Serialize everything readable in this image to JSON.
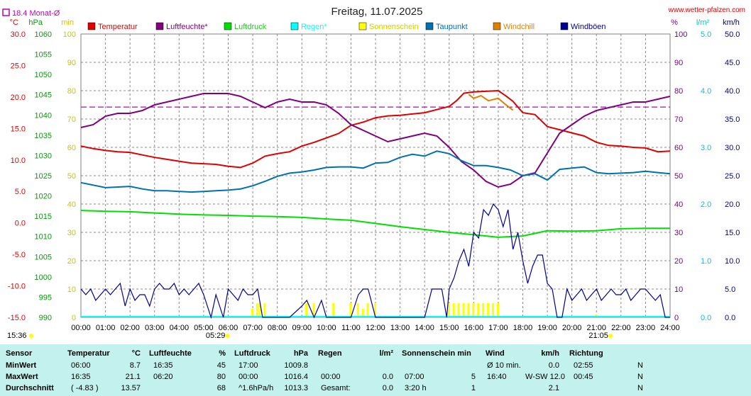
{
  "title": "Freitag, 11.07.2025",
  "site": "www.wetter-pfalzen.com",
  "monat": "18.4 Monat-Ø",
  "colors": {
    "temperatur": "#e00000",
    "luftfeuchte": "#800080",
    "luftdruck": "#00e000",
    "regen": "#00ffff",
    "sonnenschein": "#ffff00",
    "taupunkt": "#0070b0",
    "windchill": "#e08000",
    "windboeen": "#000090",
    "monat": "#c000c0",
    "stats_bg": "#c3f2ee"
  },
  "legend": [
    {
      "label": "Temperatur",
      "color": "#e00000"
    },
    {
      "label": "Luftfeuchte*",
      "color": "#800080"
    },
    {
      "label": "Luftdruck",
      "color": "#00e000"
    },
    {
      "label": "Regen*",
      "color": "#00ffff"
    },
    {
      "label": "Sonnenschein",
      "color": "#ffff00"
    },
    {
      "label": "Taupunkt",
      "color": "#0070b0"
    },
    {
      "label": "Windchill",
      "color": "#e08000"
    },
    {
      "label": "Windböen",
      "color": "#000090"
    }
  ],
  "axes": {
    "temp": {
      "unit": "°C",
      "ticks": [
        "30.0",
        "25.0",
        "20.0",
        "15.0",
        "10.0",
        "5.0",
        "0.0",
        "-5.0",
        "-10.0",
        "-15.0"
      ]
    },
    "hpa": {
      "unit": "hPa",
      "ticks": [
        "1060",
        "1055",
        "1050",
        "1045",
        "1040",
        "1035",
        "1030",
        "1025",
        "1020",
        "1015",
        "1010",
        "1005",
        "1000",
        "995",
        "990"
      ]
    },
    "min": {
      "unit": "min",
      "ticks": [
        "100",
        "90",
        "80",
        "70",
        "60",
        "50",
        "40",
        "30",
        "20",
        "10",
        "0"
      ]
    },
    "pct": {
      "unit": "%",
      "ticks": [
        "100",
        "90",
        "80",
        "70",
        "60",
        "50",
        "40",
        "30",
        "20",
        "10",
        "0"
      ]
    },
    "lm2": {
      "unit": "l/m²",
      "ticks": [
        "5.0",
        "4.0",
        "3.0",
        "2.0",
        "1.0",
        "0.0"
      ]
    },
    "kmh": {
      "unit": "km/h",
      "ticks": [
        "50.0",
        "45.0",
        "40.0",
        "35.0",
        "30.0",
        "25.0",
        "20.0",
        "15.0",
        "10.0",
        "5.0",
        "0.0"
      ]
    },
    "x": [
      "00:00",
      "01:00",
      "02:00",
      "03:00",
      "04:00",
      "05:00",
      "06:00",
      "07:00",
      "08:00",
      "09:00",
      "10:00",
      "11:00",
      "12:00",
      "13:00",
      "14:00",
      "15:00",
      "16:00",
      "17:00",
      "18:00",
      "19:00",
      "20:00",
      "21:00",
      "22:00",
      "23:00",
      "24:00"
    ]
  },
  "markers": {
    "now": "15:36",
    "sunrise": "05:29",
    "sunset": "21:05"
  },
  "chart_data": {
    "type": "line",
    "title": "Freitag, 11.07.2025",
    "x_unit": "hours",
    "monat_avg": 18.4,
    "series": [
      {
        "name": "Temperatur",
        "axis": "temp",
        "color": "#e00000",
        "x": [
          0,
          0.5,
          1,
          1.5,
          2,
          2.5,
          3,
          3.5,
          4,
          4.5,
          5,
          5.5,
          6,
          6.5,
          7,
          7.5,
          8,
          8.5,
          9,
          9.5,
          10,
          10.5,
          11,
          11.5,
          12,
          12.5,
          13,
          13.5,
          14,
          14.5,
          15,
          15.3,
          15.6,
          16,
          16.5,
          17,
          17.3,
          17.6,
          18,
          18.5,
          19,
          19.5,
          20,
          20.5,
          21,
          21.5,
          22,
          22.5,
          23,
          23.5,
          24
        ],
        "y": [
          12.2,
          11.8,
          11.5,
          11.3,
          11.2,
          10.8,
          10.4,
          10.1,
          9.8,
          9.5,
          9.4,
          9.3,
          9.0,
          8.8,
          9.5,
          10.6,
          11.0,
          11.3,
          12.2,
          12.8,
          13.5,
          14.2,
          15.5,
          16.0,
          16.7,
          17.0,
          17.1,
          17.3,
          17.5,
          18.0,
          18.5,
          19.4,
          20.6,
          20.8,
          20.9,
          21.0,
          20.2,
          19.3,
          17.5,
          17.2,
          15.3,
          14.8,
          14.3,
          13.8,
          12.8,
          12.3,
          12.2,
          12.0,
          11.9,
          11.3,
          11.4
        ]
      },
      {
        "name": "Windchill",
        "axis": "temp",
        "color": "#e08000",
        "x": [
          15.8,
          16.0,
          16.3,
          16.6,
          17.0,
          17.3,
          17.6
        ],
        "y": [
          20.4,
          19.8,
          20.2,
          19.4,
          19.8,
          18.8,
          17.9
        ]
      },
      {
        "name": "Luftfeuchte",
        "axis": "pct",
        "color": "#800080",
        "x": [
          0,
          0.5,
          1,
          1.5,
          2,
          2.5,
          3,
          3.5,
          4,
          4.5,
          5,
          5.5,
          6,
          6.5,
          7,
          7.5,
          8,
          8.5,
          9,
          9.5,
          10,
          10.5,
          11,
          11.5,
          12,
          12.5,
          13,
          13.5,
          14,
          14.5,
          15,
          15.5,
          16,
          16.5,
          17,
          17.5,
          18,
          18.5,
          19,
          19.5,
          20,
          20.5,
          21,
          21.5,
          22,
          22.5,
          23,
          23.5,
          24
        ],
        "y": [
          67,
          68,
          71,
          72,
          72,
          73,
          75,
          76,
          77,
          78,
          79,
          79,
          79,
          78,
          76,
          74,
          76,
          77,
          76,
          76,
          75,
          72,
          68,
          66,
          64,
          62,
          63,
          64,
          65,
          64,
          60,
          55,
          52,
          48,
          46,
          47,
          50,
          51,
          58,
          65,
          68,
          71,
          73,
          74,
          75,
          76,
          76,
          77,
          78
        ]
      },
      {
        "name": "Taupunkt",
        "axis": "temp",
        "color": "#0070b0",
        "x": [
          0,
          0.5,
          1,
          1.5,
          2,
          2.5,
          3,
          3.5,
          4,
          4.5,
          5,
          5.5,
          6,
          6.5,
          7,
          7.5,
          8,
          8.5,
          9,
          9.5,
          10,
          10.5,
          11,
          11.5,
          12,
          12.5,
          13,
          13.5,
          14,
          14.5,
          15,
          15.5,
          16,
          16.5,
          17,
          17.5,
          18,
          18.5,
          19,
          19.5,
          20,
          20.5,
          21,
          21.5,
          22,
          22.5,
          23,
          23.5,
          24
        ],
        "y": [
          6.4,
          6.0,
          5.6,
          5.7,
          5.8,
          5.4,
          5.1,
          5.1,
          5.0,
          4.9,
          5.0,
          5.1,
          5.2,
          5.4,
          5.9,
          6.6,
          7.4,
          7.9,
          8.1,
          8.4,
          8.8,
          8.9,
          8.9,
          8.7,
          9.5,
          9.6,
          10.4,
          10.9,
          10.6,
          11.4,
          11.0,
          9.9,
          9.1,
          9.1,
          8.8,
          8.4,
          7.5,
          7.8,
          6.8,
          8.5,
          8.7,
          8.9,
          8.0,
          7.8,
          7.9,
          8.0,
          8.2,
          8.0,
          7.8
        ]
      },
      {
        "name": "Luftdruck",
        "axis": "hpa",
        "color": "#00e000",
        "x": [
          0,
          1,
          2,
          3,
          4,
          5,
          6,
          7,
          8,
          9,
          10,
          11,
          12,
          13,
          14,
          15,
          16,
          17,
          18,
          19,
          20,
          21,
          22,
          23,
          24
        ],
        "y": [
          1016.4,
          1016.2,
          1016.1,
          1015.8,
          1015.5,
          1015.3,
          1015.2,
          1015.0,
          1014.9,
          1014.7,
          1014.3,
          1014.0,
          1013.2,
          1012.4,
          1011.7,
          1011.0,
          1010.4,
          1009.8,
          1010.1,
          1011.4,
          1011.3,
          1011.4,
          1011.9,
          1012.0,
          1012.0
        ]
      },
      {
        "name": "Windböen",
        "axis": "kmh",
        "color": "#000090",
        "x": [
          0,
          0.2,
          0.4,
          0.6,
          0.8,
          1.0,
          1.2,
          1.4,
          1.6,
          1.8,
          2.0,
          2.2,
          2.4,
          2.6,
          2.8,
          3.0,
          3.2,
          3.4,
          3.6,
          3.8,
          4.0,
          4.2,
          4.4,
          4.6,
          4.8,
          5.0,
          5.3,
          5.5,
          5.8,
          6.0,
          6.2,
          6.4,
          6.6,
          6.8,
          7.0,
          7.2,
          7.4,
          7.6,
          7.8,
          8.0,
          8.5,
          9.0,
          9.2,
          9.5,
          9.8,
          10.0,
          10.5,
          11.0,
          11.3,
          11.5,
          11.7,
          12.0,
          12.3,
          12.5,
          13.0,
          13.5,
          14.0,
          14.3,
          14.7,
          14.9,
          15.0,
          15.2,
          15.4,
          15.6,
          15.8,
          16.0,
          16.2,
          16.4,
          16.6,
          16.8,
          17.0,
          17.2,
          17.4,
          17.6,
          17.8,
          18.0,
          18.2,
          18.4,
          18.6,
          18.8,
          19.0,
          19.2,
          19.4,
          19.6,
          19.8,
          20.0,
          20.2,
          20.4,
          20.6,
          20.8,
          21.0,
          21.2,
          21.4,
          21.6,
          21.8,
          22.0,
          22.2,
          22.4,
          22.6,
          22.8,
          23.0,
          23.2,
          23.4,
          23.6,
          23.8,
          24.0
        ],
        "y": [
          5,
          4,
          5,
          3,
          4,
          5,
          4,
          5,
          6,
          2,
          5,
          3,
          4,
          4,
          2,
          5,
          6,
          5,
          5,
          6,
          4,
          5,
          4,
          5,
          6,
          4,
          0,
          4,
          0,
          5,
          4,
          3,
          5,
          4,
          4,
          5,
          0,
          0,
          0,
          0,
          0,
          2,
          3,
          0,
          3,
          0,
          0,
          0,
          4,
          5,
          5,
          0,
          0,
          0,
          0,
          0,
          0,
          5,
          5,
          0,
          5,
          7,
          10,
          12,
          9,
          15,
          14,
          19,
          18,
          20,
          19,
          16,
          19,
          12,
          15,
          10,
          6,
          9,
          11,
          11,
          6,
          5,
          0,
          0,
          5,
          3,
          4,
          5,
          3,
          4,
          5,
          3,
          4,
          5,
          4,
          4,
          5,
          3,
          4,
          5,
          5,
          4,
          3,
          4,
          0,
          0
        ]
      }
    ],
    "sonnenschein_min": {
      "x": [
        7.0,
        7.2,
        7.3,
        7.5,
        9.2,
        9.5,
        10.3,
        11.0,
        11.3,
        11.5,
        11.7,
        12.0,
        15.0,
        15.2,
        15.4,
        15.6,
        15.8,
        16.0,
        16.2,
        16.4,
        16.6,
        16.8,
        17.0,
        21.0
      ],
      "y": [
        3,
        5,
        5,
        5,
        5,
        5,
        5,
        5,
        5,
        3,
        5,
        5,
        5,
        5,
        5,
        5,
        5,
        5,
        5,
        5,
        5,
        5,
        5,
        1
      ]
    }
  },
  "stats": {
    "headers": [
      "Sensor",
      "Temperatur",
      "°C",
      "Luftfeuchte",
      "%",
      "Luftdruck",
      "hPa",
      "Regen",
      "l/m²",
      "Sonnenschein min",
      "Wind",
      "km/h",
      "Richtung"
    ],
    "rows": [
      [
        "MinWert",
        "06:00",
        "8.7",
        "16:35",
        "45",
        "17:00",
        "1009.8",
        "",
        "",
        "",
        "",
        "Ø 10 min.",
        "0.0",
        "02:55",
        "N"
      ],
      [
        "MaxWert",
        "16:35",
        "21.1",
        "06:20",
        "80",
        "00:00",
        "1016.4",
        "00:00",
        "0.0",
        "07:00",
        "5",
        "16:40",
        "W-SW 12.0",
        "00:45",
        "N"
      ],
      [
        "Durchschnitt",
        "( -4.83 )",
        "13.57",
        "",
        "68",
        "^1.6hPa/h",
        "1013.3",
        "Gesamt:",
        "0.0",
        "3:20 h",
        "1",
        "",
        "2.1",
        "",
        "N"
      ]
    ]
  }
}
